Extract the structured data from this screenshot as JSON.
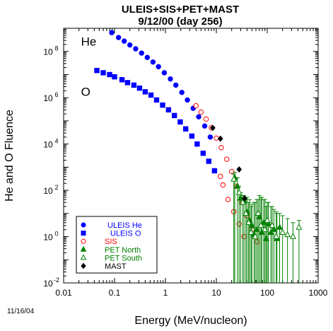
{
  "chart_data": {
    "type": "scatter",
    "title": "ULEIS+SIS+PET+MAST",
    "subtitle": "9/12/00 (day 256)",
    "xlabel": "Energy (MeV/nucleon)",
    "ylabel": "He and O Fluence",
    "x_scale": "log",
    "y_scale": "log",
    "xlim": [
      0.01,
      1000
    ],
    "ylim": [
      0.01,
      1000000000
    ],
    "x_ticks": [
      {
        "value": 0.01,
        "label": "0.01"
      },
      {
        "value": 0.1,
        "label": "0.1"
      },
      {
        "value": 1,
        "label": "1"
      },
      {
        "value": 10,
        "label": "10"
      },
      {
        "value": 100,
        "label": "100"
      },
      {
        "value": 1000,
        "label": "1000"
      }
    ],
    "y_ticks": [
      {
        "value": 0.01,
        "base": "10",
        "exp": "-2"
      },
      {
        "value": 1,
        "base": "10",
        "exp": "0"
      },
      {
        "value": 100,
        "base": "10",
        "exp": "2"
      },
      {
        "value": 10000,
        "base": "10",
        "exp": "4"
      },
      {
        "value": 1000000,
        "base": "10",
        "exp": "6"
      },
      {
        "value": 100000000,
        "base": "10",
        "exp": "8"
      }
    ],
    "species_labels": [
      {
        "text": "He",
        "x": 0.022,
        "y": 180000000
      },
      {
        "text": "O",
        "x": 0.022,
        "y": 1200000
      }
    ],
    "date_stamp": "11/16/04",
    "legend_position": "bottom-left",
    "series": [
      {
        "name": "ULEIS He",
        "marker": "circle",
        "filled": true,
        "color": "#0000ff",
        "points": [
          [
            0.088,
            650000000.0
          ],
          [
            0.12,
            400000000.0
          ],
          [
            0.155,
            280000000.0
          ],
          [
            0.2,
            190000000.0
          ],
          [
            0.26,
            130000000.0
          ],
          [
            0.34,
            85000000.0
          ],
          [
            0.44,
            55000000.0
          ],
          [
            0.57,
            35000000.0
          ],
          [
            0.73,
            22000000.0
          ],
          [
            0.95,
            12000000.0
          ],
          [
            1.25,
            6500000.0
          ],
          [
            1.6,
            3500000.0
          ],
          [
            2.1,
            1700000.0
          ],
          [
            2.7,
            800000.0
          ],
          [
            3.5,
            350000.0
          ],
          [
            4.5,
            150000.0
          ],
          [
            5.9,
            60000.0
          ],
          [
            7.6,
            20000.0
          ]
        ]
      },
      {
        "name": "ULEIS O",
        "marker": "square",
        "filled": true,
        "color": "#0000ff",
        "points": [
          [
            0.045,
            15000000.0
          ],
          [
            0.06,
            12000000.0
          ],
          [
            0.08,
            10000000.0
          ],
          [
            0.1,
            8000000.0
          ],
          [
            0.14,
            6000000.0
          ],
          [
            0.18,
            4500000.0
          ],
          [
            0.24,
            3500000.0
          ],
          [
            0.31,
            2600000.0
          ],
          [
            0.4,
            1800000.0
          ],
          [
            0.52,
            1300000.0
          ],
          [
            0.67,
            800000.0
          ],
          [
            0.88,
            480000.0
          ],
          [
            1.15,
            300000.0
          ],
          [
            1.5,
            170000.0
          ],
          [
            1.95,
            90000.0
          ],
          [
            2.5,
            45000.0
          ],
          [
            3.3,
            22000.0
          ],
          [
            4.2,
            10000.0
          ],
          [
            5.5,
            4000.0
          ],
          [
            7.1,
            1800.0
          ],
          [
            9.2,
            700.0
          ]
        ]
      },
      {
        "name": "SIS",
        "marker": "circle",
        "filled": false,
        "color": "#ff0000",
        "points": [
          [
            4.0,
            450000.0
          ],
          [
            5.0,
            240000.0
          ],
          [
            6.3,
            120000.0
          ],
          [
            8.0,
            50000.0
          ],
          [
            10,
            18000.0
          ],
          [
            12.5,
            7000.0
          ],
          [
            16,
            2200.0
          ],
          [
            20,
            650.0
          ],
          [
            25,
            150.0
          ],
          [
            32,
            30.0
          ],
          [
            40,
            8.0
          ],
          [
            50,
            2.0
          ],
          [
            63,
            0.6
          ],
          [
            13.5,
            170.0
          ],
          [
            17,
            40.0
          ],
          [
            22,
            12.0
          ],
          [
            28,
            3.5
          ],
          [
            35,
            1.0
          ],
          [
            12,
            400
          ]
        ]
      },
      {
        "name": "PET North",
        "marker": "triangle",
        "filled": true,
        "color": "#008000",
        "points": [
          [
            23,
            350,
            600
          ],
          [
            26,
            150,
            350
          ],
          [
            30,
            45,
            80
          ],
          [
            35,
            35,
            60
          ],
          [
            40,
            12,
            50
          ],
          [
            45,
            5,
            40
          ],
          [
            50,
            3,
            25
          ],
          [
            55,
            1.2,
            30
          ],
          [
            62,
            2,
            40
          ],
          [
            70,
            7,
            60
          ],
          [
            78,
            1.5,
            50
          ],
          [
            85,
            4,
            40
          ],
          [
            95,
            0.8,
            20
          ],
          [
            105,
            3.5,
            30
          ],
          [
            118,
            1.5,
            20
          ],
          [
            135,
            2.0,
            15
          ],
          [
            155,
            0.8,
            10
          ],
          [
            175,
            2.5,
            10
          ]
        ]
      },
      {
        "name": "PET South",
        "marker": "triangle",
        "filled": false,
        "color": "#008000",
        "points": [
          [
            22,
            300,
            500
          ],
          [
            28,
            80,
            150
          ],
          [
            33,
            30,
            60
          ],
          [
            38,
            10,
            40
          ],
          [
            43,
            4,
            30
          ],
          [
            48,
            1.5,
            20
          ],
          [
            58,
            1.0,
            30
          ],
          [
            66,
            10,
            40
          ],
          [
            75,
            3,
            50
          ],
          [
            90,
            2,
            40
          ],
          [
            100,
            5,
            30
          ],
          [
            125,
            3,
            20
          ],
          [
            150,
            1.0,
            12
          ],
          [
            200,
            1.5,
            8
          ],
          [
            250,
            1.2,
            6
          ],
          [
            320,
            1.0,
            4
          ],
          [
            420,
            2.5,
            5
          ]
        ]
      },
      {
        "name": "MAST",
        "marker": "diamond",
        "filled": true,
        "color": "#000000",
        "points": [
          [
            8.5,
            50000.0
          ],
          [
            12,
            17000.0
          ],
          [
            28,
            800
          ],
          [
            36,
            45
          ]
        ]
      }
    ]
  }
}
